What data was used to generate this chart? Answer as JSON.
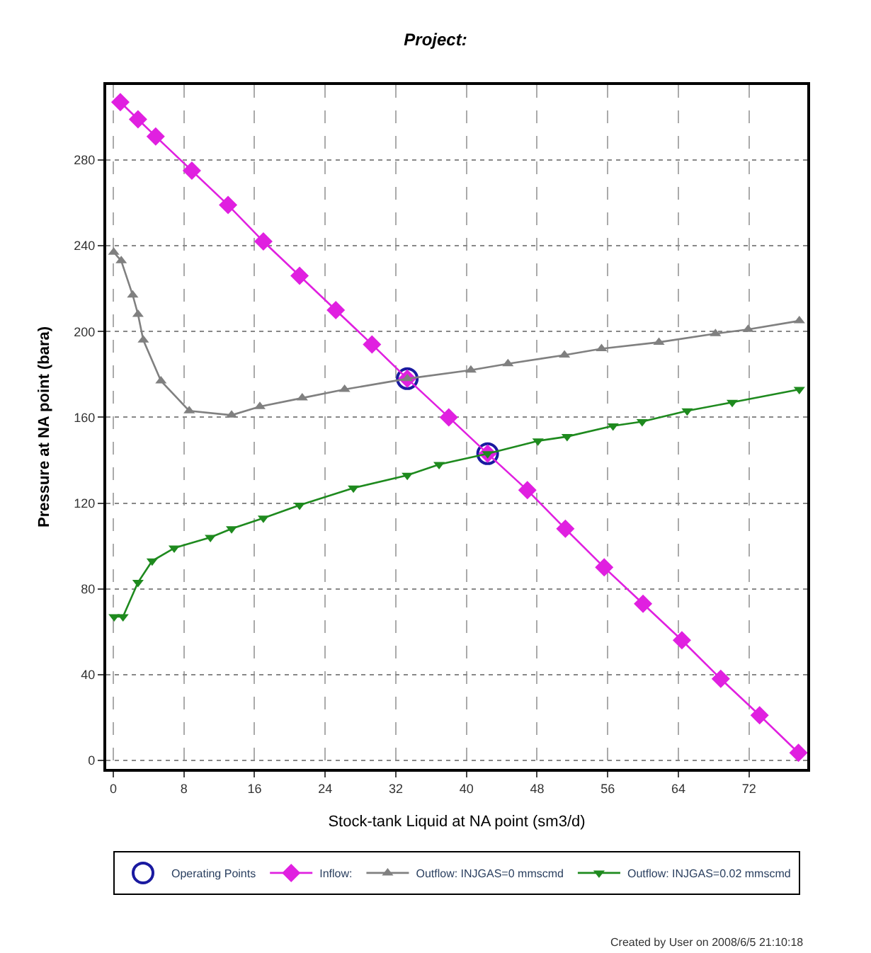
{
  "chart_data": {
    "type": "line",
    "title": "Project:",
    "xlabel": "Stock-tank Liquid at NA point (sm3/d)",
    "ylabel": "Pressure at NA point (bara)",
    "xlim": [
      -0.8,
      78.6
    ],
    "ylim": [
      -4,
      315
    ],
    "xticks": [
      0,
      8,
      16,
      24,
      32,
      40,
      48,
      56,
      64,
      72
    ],
    "yticks": [
      0,
      40,
      80,
      120,
      160,
      200,
      240,
      280
    ],
    "grid": true,
    "legend": "bottom",
    "annotations": [
      "Created by User on 2008/6/5 21:10:18"
    ],
    "series": [
      {
        "name": "Operating Points",
        "type": "scatter",
        "marker": "circle",
        "color": "#1a1aa0",
        "x": [
          33.3,
          42.4
        ],
        "values": [
          178,
          143
        ]
      },
      {
        "name": "Inflow:",
        "marker": "diamond",
        "color": "#e020e0",
        "x": [
          0.8,
          2.8,
          4.8,
          8.9,
          13.0,
          17.0,
          21.1,
          25.2,
          29.3,
          33.3,
          38.0,
          42.4,
          46.9,
          51.2,
          55.6,
          60.0,
          64.4,
          68.8,
          73.2,
          77.6
        ],
        "values": [
          307,
          299,
          291,
          275,
          259,
          242,
          226,
          210,
          194,
          178,
          160,
          143,
          126,
          108,
          90,
          73,
          56,
          38,
          21,
          3.5
        ]
      },
      {
        "name": "Outflow: INJGAS=0 mmscmd",
        "marker": "triangle",
        "color": "#808080",
        "x": [
          0.05,
          0.9,
          2.2,
          2.8,
          3.4,
          5.4,
          8.6,
          13.4,
          16.6,
          21.4,
          26.2,
          33.3,
          40.5,
          44.7,
          51.1,
          55.3,
          61.8,
          68.2,
          71.9,
          77.7
        ],
        "values": [
          237,
          233,
          217,
          208,
          196,
          177,
          163,
          161,
          165,
          169,
          173,
          178,
          182,
          185,
          189,
          192,
          195,
          199,
          201,
          205
        ]
      },
      {
        "name": "Outflow: INJGAS=0.02 mmscmd",
        "marker": "triangle-down",
        "color": "#1e8a1e",
        "x": [
          0.1,
          1.1,
          2.8,
          4.4,
          6.9,
          11.0,
          13.4,
          17.0,
          21.1,
          27.2,
          33.3,
          36.9,
          42.4,
          48.1,
          51.4,
          56.6,
          59.9,
          65.0,
          70.1,
          77.7
        ],
        "values": [
          67,
          67,
          83,
          93,
          99,
          104,
          108,
          113,
          119,
          127,
          133,
          138,
          143,
          149,
          151,
          156,
          158,
          163,
          167,
          173
        ]
      }
    ]
  }
}
